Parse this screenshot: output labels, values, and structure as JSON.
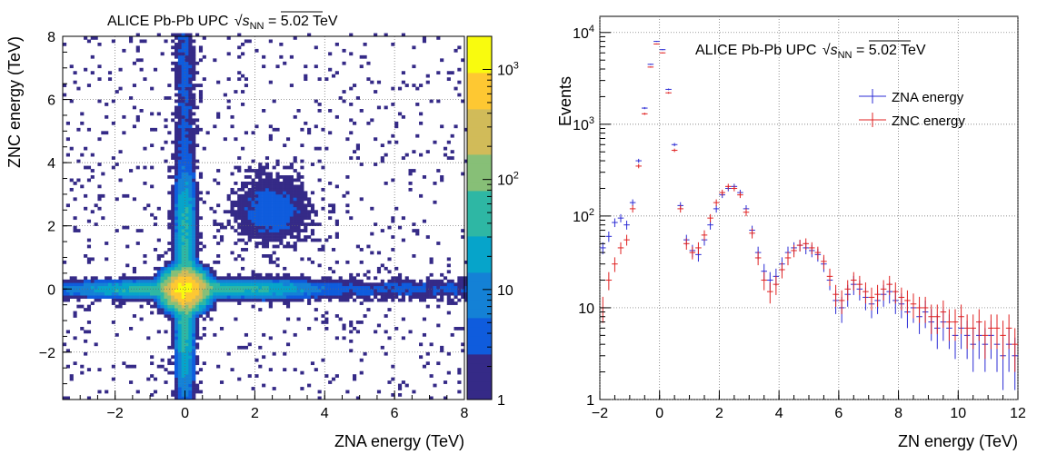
{
  "chart_data": [
    {
      "type": "heatmap",
      "title_parts": {
        "prefix": "ALICE Pb-Pb UPC ",
        "s": "s",
        "sub": "NN",
        "suffix": " = 5.02 TeV"
      },
      "xlabel": "ZNA energy (TeV)",
      "ylabel": "ZNC energy (TeV)",
      "xlim": [
        -3.5,
        8
      ],
      "ylim": [
        -3.5,
        8
      ],
      "xticks": [
        -2,
        0,
        2,
        4,
        6,
        8
      ],
      "xtick_labels": [
        "−2",
        "0",
        "2",
        "4",
        "6",
        "8"
      ],
      "yticks": [
        -2,
        0,
        2,
        4,
        6,
        8
      ],
      "ytick_labels": [
        "−2",
        "0",
        "2",
        "4",
        "6",
        "8"
      ],
      "grid": true,
      "z_scale": "log",
      "zlim": [
        1,
        2000
      ],
      "colorbar_ticks": [
        1,
        10,
        100,
        1000
      ],
      "colorbar_labels": [
        {
          "base": "1",
          "exp": ""
        },
        {
          "base": "10",
          "exp": ""
        },
        {
          "base": "10",
          "exp": "2"
        },
        {
          "base": "10",
          "exp": "3"
        }
      ],
      "colormap": [
        "#352a87",
        "#0f5cdd",
        "#1481d6",
        "#06a4ca",
        "#2eb7a4",
        "#87bf77",
        "#d1bb59",
        "#fec832",
        "#f9fb0e"
      ],
      "description_of_density": "dense peak near (0,0) and narrow bands along x=0 and y=0, weaker clusters near (2.5,2.5) and along 2.5 on each axis"
    },
    {
      "type": "line",
      "title_parts": {
        "prefix": "ALICE Pb-Pb UPC ",
        "s": "s",
        "sub": "NN",
        "suffix": " = 5.02 TeV"
      },
      "xlabel": "ZN energy (TeV)",
      "ylabel": "Events",
      "xlim": [
        -2,
        12
      ],
      "ylim": [
        1,
        15000
      ],
      "y_scale": "log",
      "xticks": [
        -2,
        0,
        2,
        4,
        6,
        8,
        10,
        12
      ],
      "xtick_labels": [
        "−2",
        "0",
        "2",
        "4",
        "6",
        "8",
        "10",
        "12"
      ],
      "yticks": [
        1,
        10,
        100,
        1000,
        10000
      ],
      "ytick_labels": [
        {
          "base": "1",
          "exp": ""
        },
        {
          "base": "10",
          "exp": ""
        },
        {
          "base": "10",
          "exp": "2"
        },
        {
          "base": "10",
          "exp": "3"
        },
        {
          "base": "10",
          "exp": "4"
        }
      ],
      "legend_position": "upper-right",
      "series": [
        {
          "name": "ZNA energy",
          "color": "#2b2bd4",
          "x": [
            -1.9,
            -1.7,
            -1.5,
            -1.3,
            -1.1,
            -0.9,
            -0.7,
            -0.5,
            -0.3,
            -0.1,
            0.1,
            0.3,
            0.5,
            0.7,
            0.9,
            1.1,
            1.3,
            1.5,
            1.7,
            1.9,
            2.1,
            2.3,
            2.5,
            2.7,
            2.9,
            3.1,
            3.3,
            3.5,
            3.7,
            3.9,
            4.1,
            4.3,
            4.5,
            4.7,
            4.9,
            5.1,
            5.3,
            5.5,
            5.7,
            5.9,
            6.1,
            6.3,
            6.5,
            6.7,
            6.9,
            7.1,
            7.3,
            7.5,
            7.7,
            7.9,
            8.1,
            8.3,
            8.5,
            8.7,
            8.9,
            9.1,
            9.3,
            9.5,
            9.7,
            9.9,
            10.1,
            10.3,
            10.5,
            10.7,
            10.9,
            11.1,
            11.3,
            11.5,
            11.7,
            11.9
          ],
          "y": [
            45,
            60,
            85,
            95,
            80,
            140,
            400,
            1500,
            4500,
            8000,
            6500,
            2400,
            600,
            130,
            55,
            42,
            38,
            55,
            80,
            120,
            170,
            200,
            210,
            180,
            120,
            70,
            40,
            25,
            20,
            22,
            30,
            40,
            45,
            48,
            45,
            42,
            38,
            30,
            20,
            12,
            10,
            14,
            18,
            16,
            13,
            11,
            12,
            14,
            15,
            12,
            11,
            9,
            10,
            8,
            9,
            7,
            6,
            7,
            6,
            5,
            6,
            5,
            4,
            5,
            4,
            5,
            4,
            3,
            4,
            3
          ]
        },
        {
          "name": "ZNC energy",
          "color": "#e02222",
          "x": [
            -1.9,
            -1.7,
            -1.5,
            -1.3,
            -1.1,
            -0.9,
            -0.7,
            -0.5,
            -0.3,
            -0.1,
            0.1,
            0.3,
            0.5,
            0.7,
            0.9,
            1.1,
            1.3,
            1.5,
            1.7,
            1.9,
            2.1,
            2.3,
            2.5,
            2.7,
            2.9,
            3.1,
            3.3,
            3.5,
            3.7,
            3.9,
            4.1,
            4.3,
            4.5,
            4.7,
            4.9,
            5.1,
            5.3,
            5.5,
            5.7,
            5.9,
            6.1,
            6.3,
            6.5,
            6.7,
            6.9,
            7.1,
            7.3,
            7.5,
            7.7,
            7.9,
            8.1,
            8.3,
            8.5,
            8.7,
            8.9,
            9.1,
            9.3,
            9.5,
            9.7,
            9.9,
            10.1,
            10.3,
            10.5,
            10.7,
            10.9,
            11.1,
            11.3,
            11.5,
            11.7,
            11.9
          ],
          "y": [
            10,
            20,
            30,
            45,
            55,
            120,
            350,
            1300,
            4200,
            7500,
            6000,
            2200,
            520,
            120,
            50,
            40,
            45,
            62,
            95,
            140,
            180,
            210,
            200,
            170,
            110,
            65,
            35,
            20,
            15,
            18,
            26,
            35,
            42,
            48,
            50,
            45,
            40,
            32,
            22,
            14,
            12,
            16,
            20,
            18,
            15,
            13,
            14,
            16,
            18,
            15,
            13,
            12,
            11,
            10,
            10,
            8,
            8,
            9,
            7,
            7,
            8,
            6,
            6,
            7,
            5,
            6,
            6,
            5,
            6,
            4
          ]
        }
      ]
    }
  ]
}
